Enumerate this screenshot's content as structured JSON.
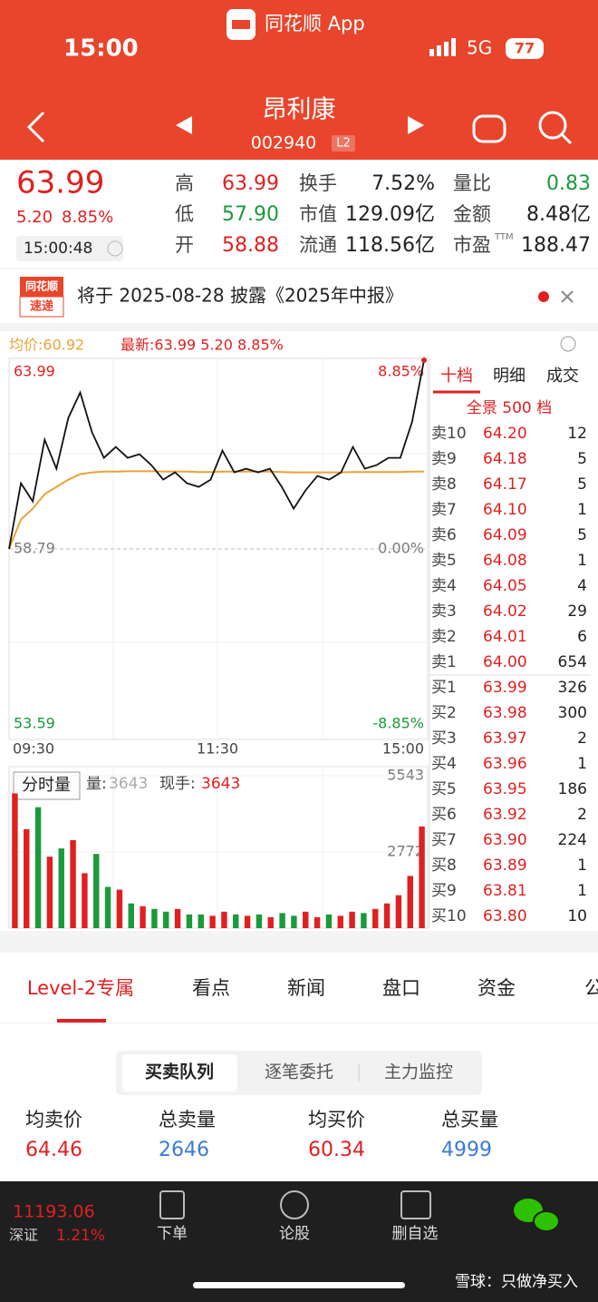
{
  "status": {
    "time": "15:00",
    "app": "同花顺 App",
    "network": "5G",
    "battery": "77"
  },
  "header": {
    "title": "昂利康",
    "code": "002940",
    "badge": "L2"
  },
  "quote": {
    "price": "63.99",
    "change": "5.20",
    "percent": "8.85%",
    "time": "15:00:48",
    "stats": [
      {
        "label": "高",
        "value": "63.99",
        "color": "#e02020"
      },
      {
        "label": "换手",
        "value": "7.52%",
        "color": "#222222"
      },
      {
        "label": "量比",
        "value": "0.83",
        "color": "#1a9a3a"
      },
      {
        "label": "低",
        "value": "57.90",
        "color": "#1a9a3a"
      },
      {
        "label": "市值",
        "value": "129.09亿",
        "color": "#222222"
      },
      {
        "label": "金额",
        "value": "8.48亿",
        "color": "#222222"
      },
      {
        "label": "开",
        "value": "58.88",
        "color": "#e02020"
      },
      {
        "label": "流通",
        "value": "118.56亿",
        "color": "#222222"
      },
      {
        "label": "市盈",
        "sup": "TTM",
        "value": "188.47",
        "color": "#222222"
      }
    ]
  },
  "notice": {
    "brand_top": "同花顺",
    "brand_bottom": "速递",
    "text": "将于 2025-08-28 披露《2025年中报》"
  },
  "intraday": {
    "legend": [
      "均价:60.92",
      "最新:63.99 5.20 8.85%"
    ],
    "price": [
      58.79,
      60.6,
      60.1,
      61.8,
      61.0,
      62.4,
      63.1,
      62.0,
      61.3,
      61.6,
      61.3,
      61.4,
      61.1,
      60.7,
      60.9,
      60.6,
      60.5,
      60.7,
      61.5,
      60.9,
      61.0,
      60.9,
      61.0,
      60.5,
      59.9,
      60.4,
      60.8,
      60.7,
      60.9,
      61.6,
      61.0,
      61.1,
      61.3,
      61.3,
      62.3,
      63.99
    ],
    "avg": [
      58.79,
      59.6,
      59.9,
      60.3,
      60.5,
      60.7,
      60.85,
      60.9,
      60.92,
      60.92,
      60.93,
      60.93,
      60.93,
      60.92,
      60.92,
      60.92,
      60.91,
      60.91,
      60.92,
      60.92,
      60.92,
      60.92,
      60.92,
      60.91,
      60.9,
      60.9,
      60.9,
      60.9,
      60.9,
      60.91,
      60.91,
      60.91,
      60.91,
      60.91,
      60.92,
      60.92
    ],
    "ylim": [
      53.59,
      63.99
    ],
    "yticks": [
      53.59,
      58.79,
      63.99
    ],
    "pct_labels": [
      "-8.85%",
      "0.00%",
      "8.85%"
    ],
    "times": [
      "09:30",
      "11:30",
      "15:00"
    ]
  },
  "volume": {
    "tab": "分时量",
    "vol_label": "量:",
    "vol": "3643",
    "hand_label": "现手:",
    "hand": "3643",
    "values": [
      4900,
      3600,
      4400,
      2600,
      2900,
      3200,
      2000,
      2700,
      1500,
      1400,
      900,
      800,
      700,
      600,
      700,
      500,
      500,
      450,
      600,
      500,
      450,
      500,
      400,
      550,
      450,
      600,
      400,
      500,
      450,
      600,
      550,
      700,
      900,
      1200,
      1900,
      3700
    ],
    "ylim": [
      0,
      5543
    ],
    "yticks": [
      2772,
      5543
    ]
  },
  "orderbook": {
    "tabs": [
      "十档",
      "明细",
      "成交"
    ],
    "depth": "全景 500 档",
    "asks": [
      {
        "label": "卖10",
        "price": "64.20",
        "qty": "12"
      },
      {
        "label": "卖9",
        "price": "64.18",
        "qty": "5"
      },
      {
        "label": "卖8",
        "price": "64.17",
        "qty": "5"
      },
      {
        "label": "卖7",
        "price": "64.10",
        "qty": "1"
      },
      {
        "label": "卖6",
        "price": "64.09",
        "qty": "5"
      },
      {
        "label": "卖5",
        "price": "64.08",
        "qty": "1"
      },
      {
        "label": "卖4",
        "price": "64.05",
        "qty": "4"
      },
      {
        "label": "卖3",
        "price": "64.02",
        "qty": "29"
      },
      {
        "label": "卖2",
        "price": "64.01",
        "qty": "6"
      },
      {
        "label": "卖1",
        "price": "64.00",
        "qty": "654"
      }
    ],
    "bids": [
      {
        "label": "买1",
        "price": "63.99",
        "qty": "326"
      },
      {
        "label": "买2",
        "price": "63.98",
        "qty": "300"
      },
      {
        "label": "买3",
        "price": "63.97",
        "qty": "2"
      },
      {
        "label": "买4",
        "price": "63.96",
        "qty": "1"
      },
      {
        "label": "买5",
        "price": "63.95",
        "qty": "186"
      },
      {
        "label": "买6",
        "price": "63.92",
        "qty": "2"
      },
      {
        "label": "买7",
        "price": "63.90",
        "qty": "224"
      },
      {
        "label": "买8",
        "price": "63.89",
        "qty": "1"
      },
      {
        "label": "买9",
        "price": "63.81",
        "qty": "1"
      },
      {
        "label": "买10",
        "price": "63.80",
        "qty": "10"
      }
    ]
  },
  "tabs": [
    "Level-2专属",
    "看点",
    "新闻",
    "盘口",
    "资金",
    "公告"
  ],
  "segments": [
    "买卖队列",
    "逐笔委托",
    "主力监控"
  ],
  "summary": [
    {
      "label": "均卖价",
      "value": "64.46",
      "color": "#e02020"
    },
    {
      "label": "总卖量",
      "value": "2646",
      "color": "#3a7bd5"
    },
    {
      "label": "均买价",
      "value": "60.34",
      "color": "#e02020"
    },
    {
      "label": "总买量",
      "value": "4999",
      "color": "#3a7bd5"
    }
  ],
  "bottom": {
    "index": "11193.06",
    "market": "深证",
    "index_pct": "1.21%",
    "nav": [
      "下单",
      "论股",
      "删自选"
    ],
    "watermark": "雪球：只做净买入"
  }
}
